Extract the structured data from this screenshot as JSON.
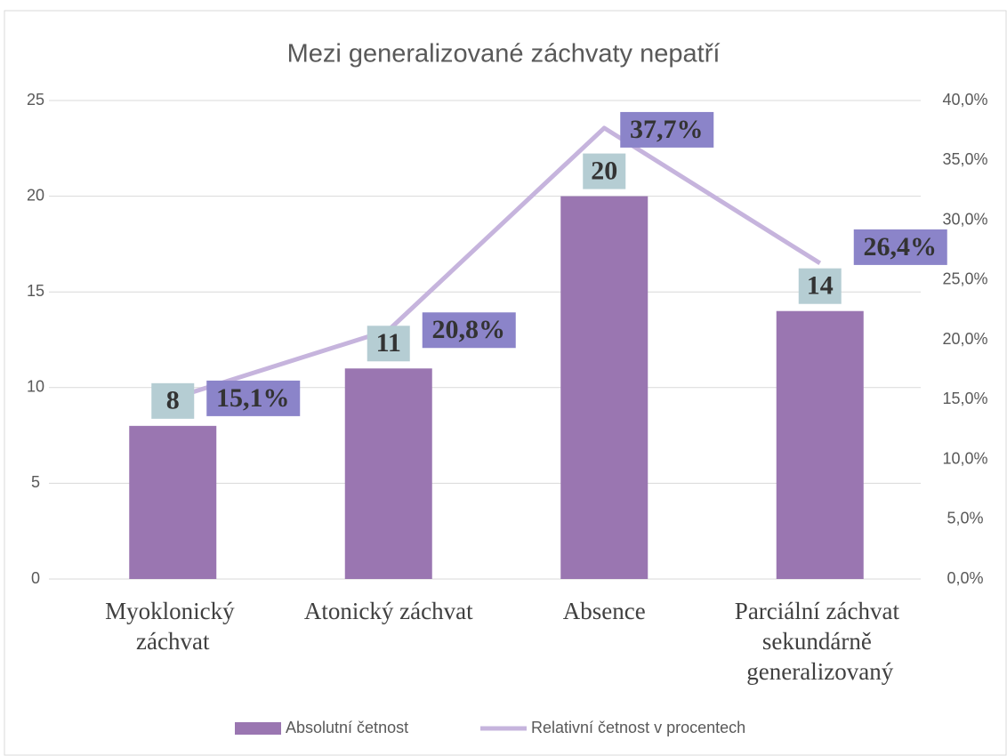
{
  "chart_data": {
    "type": "bar_line",
    "title": "Mezi generalizované záchvaty nepatří",
    "categories": [
      "Myoklonický záchvat",
      "Atonický záchvat",
      "Absence",
      "Parciální záchvat sekundárně generalizovaný"
    ],
    "series": [
      {
        "name": "Absolutní četnost",
        "type": "bar",
        "color": "#9a76b1",
        "values": [
          8,
          11,
          20,
          14
        ]
      },
      {
        "name": "Relativní četnost v procentech",
        "type": "line",
        "axis": "y2",
        "color": "#c6b4dd",
        "values": [
          15.1,
          20.8,
          37.7,
          26.4
        ],
        "value_labels": [
          "15,1%",
          "20,8%",
          "37,7%",
          "26,4%"
        ]
      }
    ],
    "ylim": [
      0,
      25
    ],
    "yticks": [
      0,
      5,
      10,
      15,
      20,
      25
    ],
    "y2lim": [
      0,
      40
    ],
    "y2ticks": [
      {
        "value": 0,
        "label": "0,0%"
      },
      {
        "value": 5,
        "label": "5,0%"
      },
      {
        "value": 10,
        "label": "10,0%"
      },
      {
        "value": 15,
        "label": "15,0%"
      },
      {
        "value": 20,
        "label": "20,0%"
      },
      {
        "value": 25,
        "label": "25,0%"
      },
      {
        "value": 30,
        "label": "30,0%"
      },
      {
        "value": 35,
        "label": "35,0%"
      },
      {
        "value": 40,
        "label": "40,0%"
      }
    ],
    "grid": true,
    "legend": "bottom"
  }
}
